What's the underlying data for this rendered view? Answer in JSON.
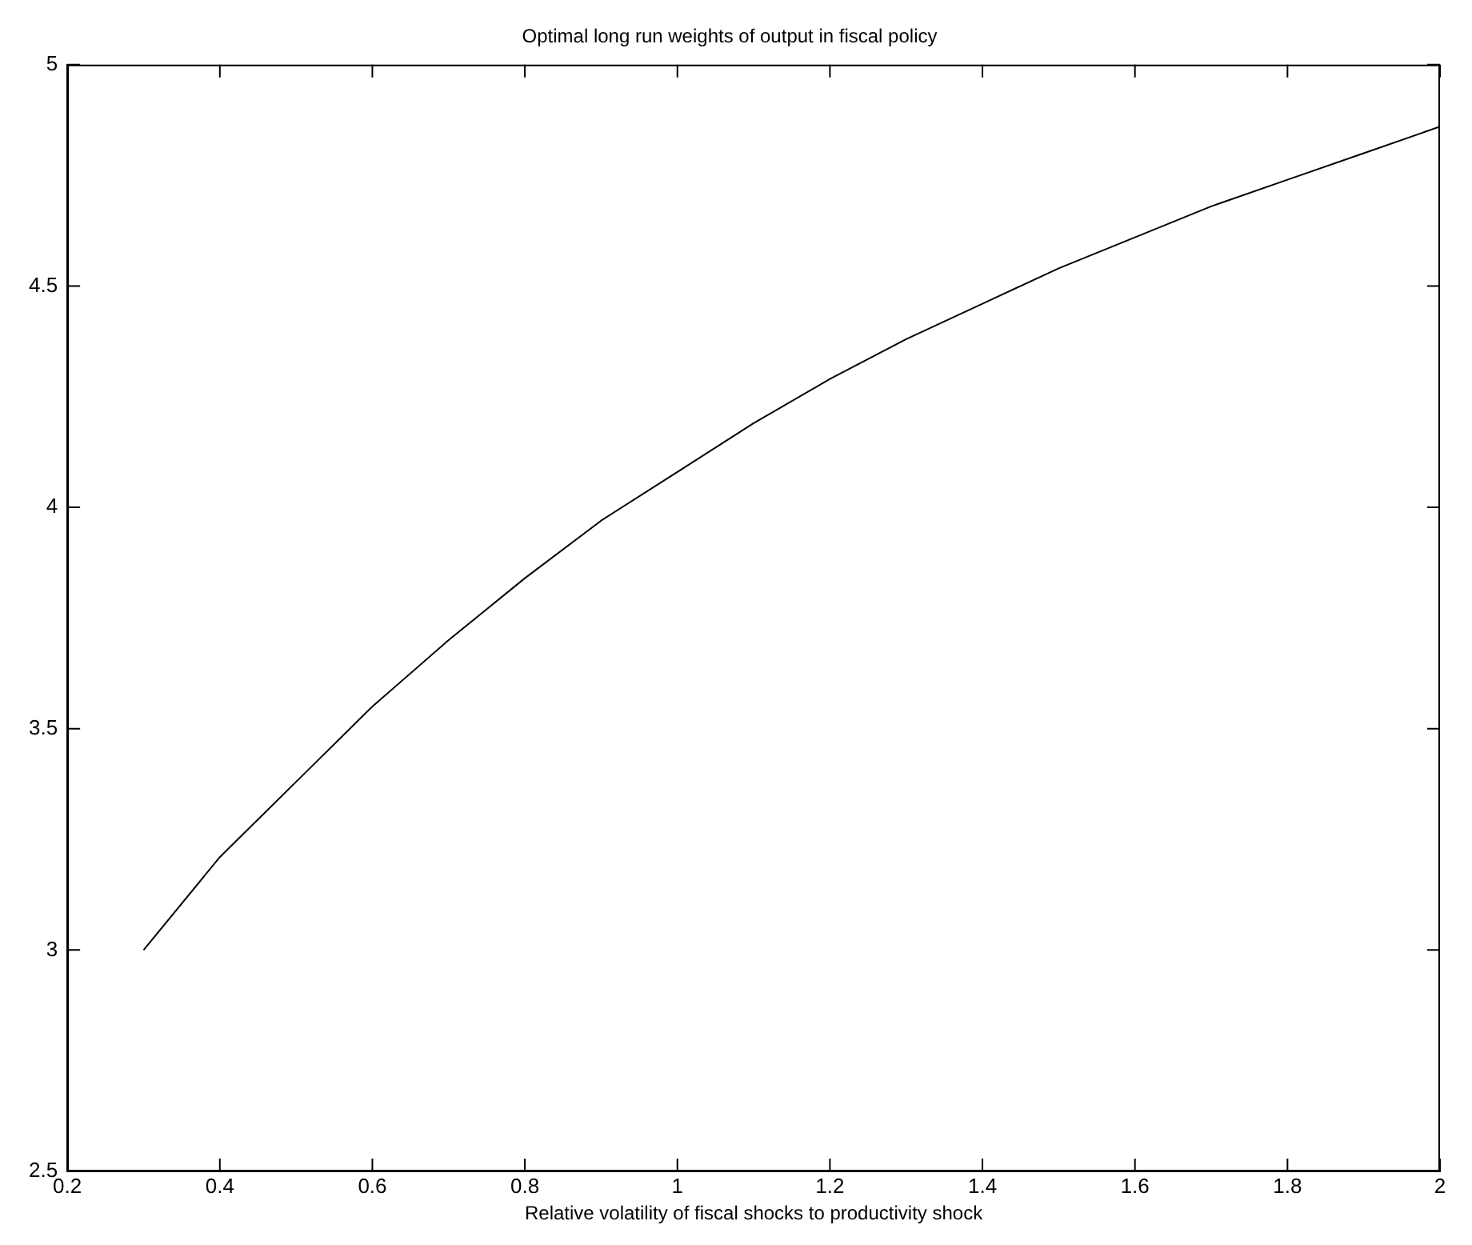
{
  "chart_data": {
    "type": "line",
    "title": "Optimal long run weights of output in fiscal policy",
    "xlabel": "Relative volatility of fiscal shocks to productivity shock",
    "x": [
      0.3,
      0.4,
      0.5,
      0.6,
      0.7,
      0.8,
      0.9,
      1.0,
      1.1,
      1.2,
      1.3,
      1.4,
      1.5,
      1.6,
      1.7,
      1.8,
      1.9,
      2.0
    ],
    "series": [
      {
        "color": "#000000",
        "values": [
          3.0,
          3.21,
          3.38,
          3.55,
          3.7,
          3.84,
          3.97,
          4.08,
          4.19,
          4.29,
          4.38,
          4.46,
          4.54,
          4.61,
          4.68,
          4.74,
          4.8,
          4.86
        ]
      }
    ],
    "xlim": [
      0.2,
      2
    ],
    "xticks": [
      0.2,
      0.4,
      0.6,
      0.8,
      1,
      1.2,
      1.4,
      1.6,
      1.8,
      2
    ],
    "ylim": [
      2.5,
      5
    ],
    "yticks": [
      2.5,
      3,
      3.5,
      4,
      4.5,
      5
    ],
    "grid": false,
    "legend": false,
    "marker": "none",
    "line_style": "solid"
  }
}
